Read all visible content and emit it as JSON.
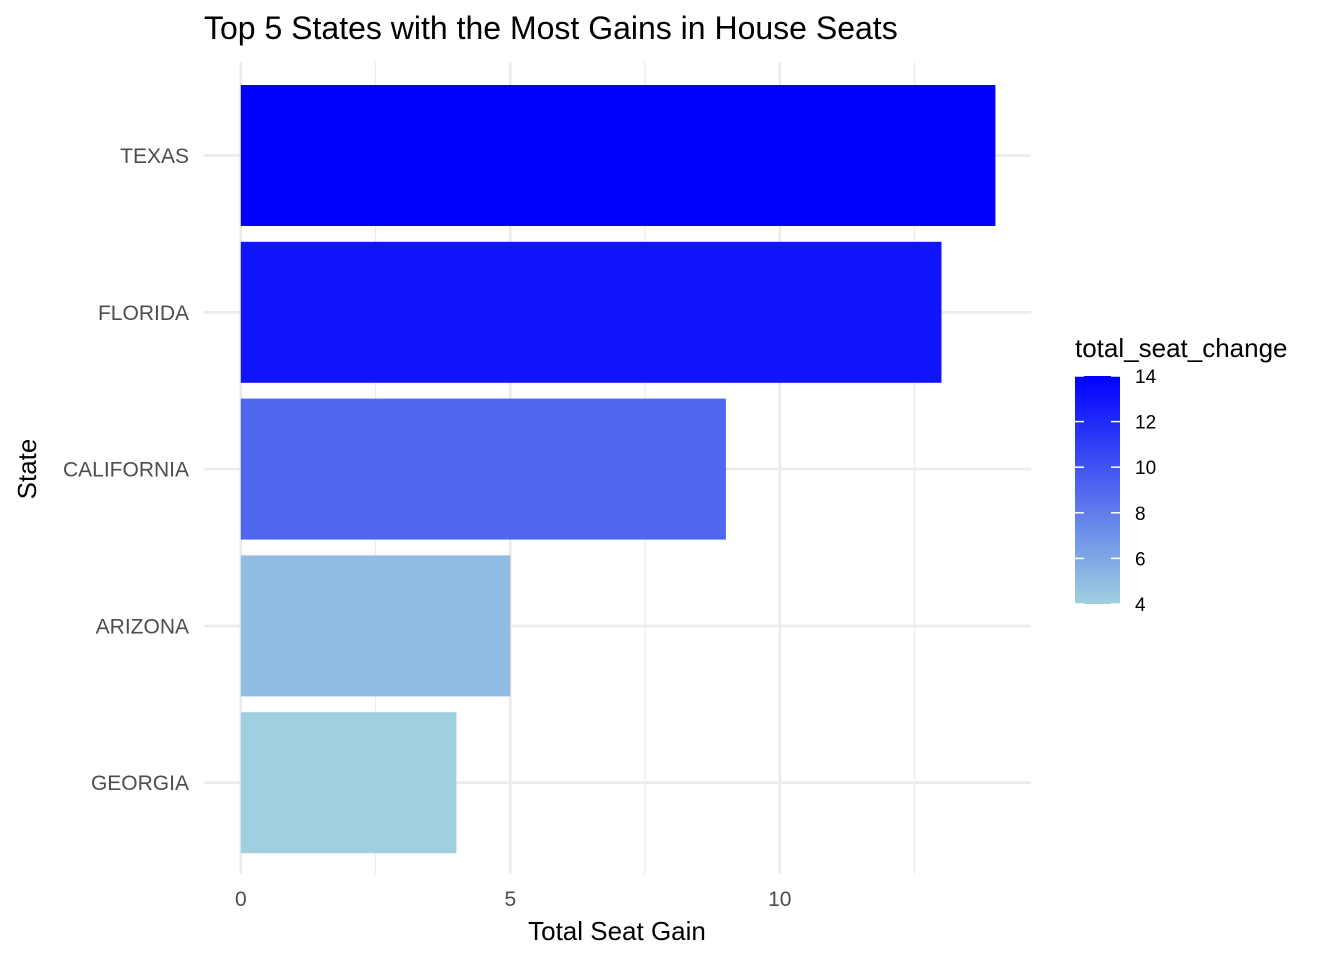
{
  "chart_data": {
    "type": "bar",
    "orientation": "horizontal",
    "title": "Top 5 States with the Most Gains in House Seats",
    "xlabel": "Total Seat Gain",
    "ylabel": "State",
    "categories": [
      "TEXAS",
      "FLORIDA",
      "CALIFORNIA",
      "ARIZONA",
      "GEORGIA"
    ],
    "values": [
      14,
      13,
      9,
      5,
      4
    ],
    "xlim": [
      0,
      14
    ],
    "x_ticks": [
      0,
      5,
      10
    ],
    "grid": true,
    "legend": {
      "title": "total_seat_change",
      "placement": "right",
      "type": "colorbar",
      "range": [
        4,
        14
      ],
      "ticks": [
        4,
        6,
        8,
        10,
        12,
        14
      ],
      "low_color": "#a0d0e0",
      "high_color": "#0000ff"
    }
  }
}
